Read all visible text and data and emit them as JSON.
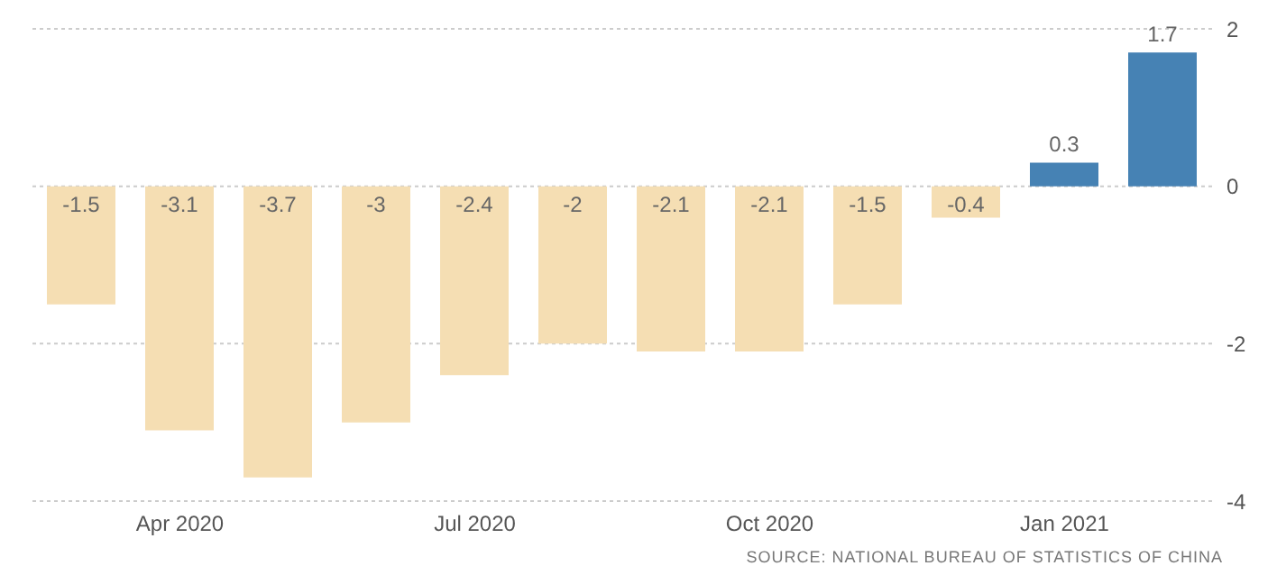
{
  "chart_data": {
    "type": "bar",
    "categories": [
      null,
      "Apr 2020",
      null,
      null,
      "Jul 2020",
      null,
      null,
      "Oct 2020",
      null,
      null,
      "Jan 2021",
      null
    ],
    "values": [
      -1.5,
      -3.1,
      -3.7,
      -3,
      -2.4,
      -2,
      -2.1,
      -2.1,
      -1.5,
      -0.4,
      0.3,
      1.7
    ],
    "colors": [
      "#f5deb3",
      "#f5deb3",
      "#f5deb3",
      "#f5deb3",
      "#f5deb3",
      "#f5deb3",
      "#f5deb3",
      "#f5deb3",
      "#f5deb3",
      "#f5deb3",
      "#4682b4",
      "#4682b4"
    ],
    "ylim": [
      -4,
      2
    ],
    "yticks": [
      -4,
      -2,
      0,
      2
    ],
    "grid": "y",
    "data_labels": true,
    "annotations": [
      "SOURCE: NATIONAL BUREAU OF STATISTICS OF CHINA"
    ]
  }
}
